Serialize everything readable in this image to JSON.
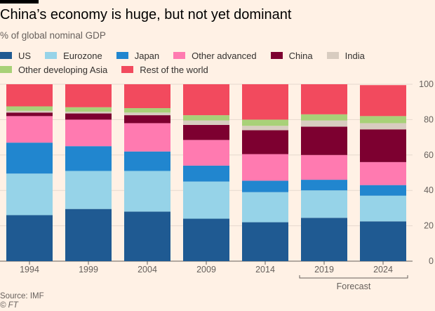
{
  "header": {
    "title": "China’s economy is huge, but not yet dominant",
    "subtitle": "% of global nominal GDP"
  },
  "footer": {
    "source": "Source: IMF",
    "credit": "© FT"
  },
  "chart_data": {
    "type": "bar",
    "stacked": true,
    "title": "China’s economy is huge, but not yet dominant",
    "subtitle": "% of global nominal GDP",
    "categories": [
      "1994",
      "1999",
      "2004",
      "2009",
      "2014",
      "2019",
      "2024"
    ],
    "ylim": [
      0,
      100
    ],
    "yticks": [
      0,
      20,
      40,
      60,
      80,
      100
    ],
    "y_axis_side": "right",
    "grid": true,
    "legend_position": "top",
    "annotation": {
      "text": "Forecast",
      "categories": [
        "2019",
        "2024"
      ]
    },
    "series": [
      {
        "name": "US",
        "color": "#1f5a92",
        "values": [
          26,
          29.5,
          28,
          24,
          22,
          24.5,
          22.5
        ]
      },
      {
        "name": "Eurozone",
        "color": "#96d3e8",
        "values": [
          23.5,
          21.5,
          23,
          21,
          17,
          15.5,
          14.5
        ]
      },
      {
        "name": "Japan",
        "color": "#2186cf",
        "values": [
          17.5,
          14,
          11,
          9,
          6.5,
          6,
          6
        ]
      },
      {
        "name": "Other advanced",
        "color": "#ff7ab0",
        "values": [
          15,
          15,
          16,
          14.5,
          15,
          14,
          13
        ]
      },
      {
        "name": "China",
        "color": "#7d0030",
        "values": [
          2,
          3.5,
          4.5,
          8.5,
          13.5,
          16,
          18.5
        ]
      },
      {
        "name": "India",
        "color": "#d8ccc0",
        "values": [
          1,
          1,
          1.5,
          2.5,
          2.5,
          3.5,
          3.5
        ]
      },
      {
        "name": "Other developing Asia",
        "color": "#a8d178",
        "values": [
          2.5,
          2.5,
          2.5,
          3,
          3.5,
          3.5,
          4
        ]
      },
      {
        "name": "Rest of the world",
        "color": "#f24a5e",
        "values": [
          12.5,
          13,
          13.5,
          17.5,
          20,
          17,
          17.5
        ]
      }
    ]
  }
}
